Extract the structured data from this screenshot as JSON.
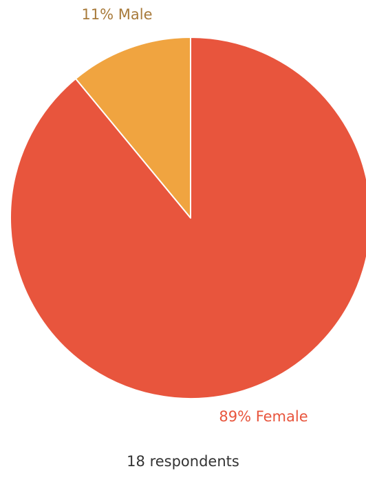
{
  "chart_data": {
    "type": "pie",
    "values": [
      89,
      11
    ],
    "value_labels": [
      "89% Female",
      "11% Male"
    ],
    "colors": [
      "#e8553d",
      "#f0a440"
    ],
    "label_colors": [
      "#e8553d",
      "#a87a3a"
    ],
    "caption": "18 respondents"
  }
}
